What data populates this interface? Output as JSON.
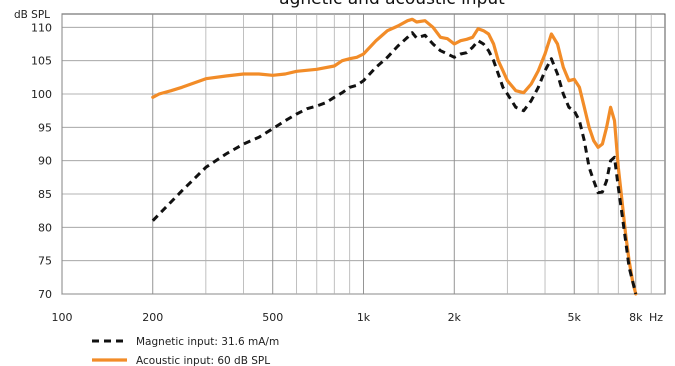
{
  "chart_data": {
    "type": "line",
    "title": "agnetic and acoustic input",
    "ylabel": "dB SPL",
    "x_unit": "Hz",
    "x_scale": "log",
    "xlim": [
      100,
      10000
    ],
    "ylim": [
      70,
      112
    ],
    "grid": true,
    "legend_position": "bottom-left",
    "x_tick_labels": [
      {
        "value": 100,
        "label": "100"
      },
      {
        "value": 200,
        "label": "200"
      },
      {
        "value": 500,
        "label": "500"
      },
      {
        "value": 1000,
        "label": "1k"
      },
      {
        "value": 2000,
        "label": "2k"
      },
      {
        "value": 5000,
        "label": "5k"
      },
      {
        "value": 8000,
        "label": "8k"
      }
    ],
    "x_minor_grid": [
      300,
      400,
      600,
      700,
      800,
      900,
      3000,
      4000,
      6000,
      7000,
      9000
    ],
    "y_ticks": [
      70,
      75,
      80,
      85,
      90,
      95,
      100,
      105,
      110
    ],
    "series": [
      {
        "name": "Magnetic input: 31.6 mA/m",
        "color": "#111111",
        "style": "dashed",
        "x": [
          200,
          250,
          300,
          350,
          400,
          450,
          500,
          550,
          600,
          650,
          700,
          750,
          800,
          850,
          900,
          950,
          1000,
          1100,
          1200,
          1300,
          1400,
          1450,
          1500,
          1600,
          1700,
          1800,
          1900,
          2000,
          2100,
          2200,
          2300,
          2400,
          2500,
          2600,
          2700,
          2800,
          2900,
          3000,
          3200,
          3400,
          3600,
          3800,
          4000,
          4200,
          4400,
          4600,
          4800,
          5000,
          5200,
          5400,
          5600,
          5800,
          6000,
          6200,
          6400,
          6600,
          6800,
          7000,
          7200,
          7400,
          7600,
          7800,
          8000
        ],
        "y": [
          81,
          85.5,
          89,
          91,
          92.5,
          93.5,
          94.8,
          96,
          97,
          97.8,
          98.2,
          98.7,
          99.5,
          100.2,
          101,
          101.3,
          102,
          104,
          105.5,
          107.2,
          108.5,
          109.2,
          108.4,
          108.8,
          107.5,
          106.5,
          106,
          105.5,
          106,
          106.2,
          107,
          108,
          107.5,
          106.5,
          105,
          103,
          101,
          100,
          98,
          97.5,
          99,
          101,
          103.5,
          105.3,
          103,
          100,
          98,
          97.5,
          96,
          93,
          89,
          87,
          85.2,
          85.3,
          87,
          90,
          90.5,
          86,
          82,
          78,
          74,
          72,
          70
        ]
      },
      {
        "name": "Acoustic input:   60 dB SPL",
        "color": "#f28c28",
        "style": "solid",
        "x": [
          200,
          210,
          230,
          250,
          300,
          350,
          400,
          450,
          500,
          550,
          600,
          700,
          800,
          850,
          900,
          950,
          1000,
          1100,
          1200,
          1300,
          1400,
          1450,
          1500,
          1600,
          1700,
          1800,
          1900,
          2000,
          2100,
          2200,
          2300,
          2400,
          2500,
          2600,
          2700,
          2800,
          2900,
          3000,
          3200,
          3400,
          3600,
          3800,
          4000,
          4200,
          4400,
          4600,
          4800,
          5000,
          5200,
          5400,
          5600,
          5800,
          6000,
          6200,
          6400,
          6600,
          6800,
          7000,
          7200,
          7400,
          7600,
          7800,
          8000
        ],
        "y": [
          99.5,
          100,
          100.5,
          101,
          102.3,
          102.7,
          103,
          103,
          102.8,
          103,
          103.4,
          103.7,
          104.2,
          105,
          105.3,
          105.5,
          106,
          108,
          109.5,
          110.2,
          111,
          111.2,
          110.8,
          111,
          110,
          108.5,
          108.3,
          107.5,
          108,
          108.2,
          108.5,
          109.8,
          109.5,
          109,
          107.5,
          105,
          103.5,
          102,
          100.5,
          100.2,
          101.5,
          103.5,
          106,
          109,
          107.5,
          104,
          102,
          102.2,
          101,
          98,
          95,
          93,
          92,
          92.5,
          95,
          98,
          96,
          89,
          84,
          79,
          75,
          72,
          70
        ]
      }
    ]
  }
}
